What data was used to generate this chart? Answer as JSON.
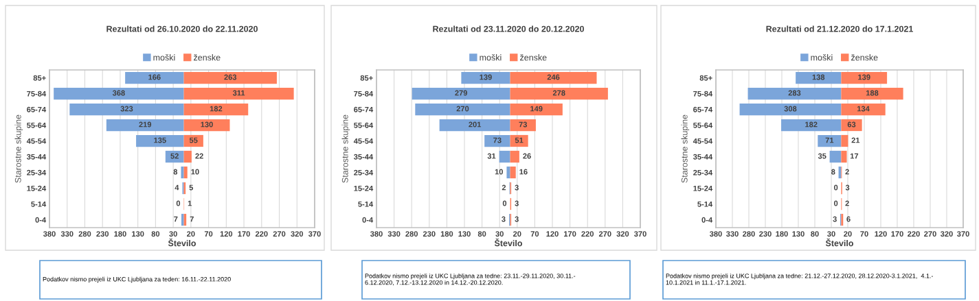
{
  "chart_data": [
    {
      "type": "bar",
      "orientation": "horizontal",
      "title": "Rezultati od 26.10.2020 do 22.11.2020",
      "xlabel": "Število",
      "ylabel": "Starostne skupine",
      "categories": [
        "85+",
        "75-84",
        "65-74",
        "55-64",
        "45-54",
        "35-44",
        "25-34",
        "15-24",
        "5-14",
        "0-4"
      ],
      "series": [
        {
          "name": "moški",
          "color": "#7ba5da",
          "values": [
            166,
            368,
            323,
            219,
            135,
            52,
            8,
            4,
            0,
            7
          ],
          "base": [
            -166,
            -368,
            -323,
            -219,
            -135,
            -52,
            -8,
            -4,
            null,
            -7
          ]
        },
        {
          "name": "ženske",
          "color": "#ff7f5c",
          "values": [
            263,
            311,
            182,
            130,
            55,
            22,
            10,
            5,
            1,
            7
          ]
        }
      ],
      "xlim": [
        -380,
        370
      ],
      "xticks": [
        {
          "value": -380,
          "label": "380"
        },
        {
          "value": -330,
          "label": "330"
        },
        {
          "value": -280,
          "label": "280"
        },
        {
          "value": -230,
          "label": "230"
        },
        {
          "value": -180,
          "label": "180"
        },
        {
          "value": -130,
          "label": "130"
        },
        {
          "value": -80,
          "label": "80"
        },
        {
          "value": -30,
          "label": "30"
        },
        20,
        70,
        120,
        170,
        220,
        270,
        320,
        370
      ],
      "grid": "x",
      "legend": "top",
      "data_labels": true,
      "annotations": [
        "Podatkov nismo prejeli iz UKC Ljubljana za teden: 16.11.-22.11.2020"
      ]
    },
    {
      "type": "bar",
      "orientation": "horizontal",
      "title": "Rezultati od 23.11.2020 do 20.12.2020",
      "xlabel": "Število",
      "ylabel": "Starostne skupine",
      "categories": [
        "85+",
        "75-84",
        "65-74",
        "55-64",
        "45-54",
        "35-44",
        "25-34",
        "15-24",
        "5-14",
        "0-4"
      ],
      "series": [
        {
          "name": "moški",
          "color": "#7ba5da",
          "values": [
            139,
            279,
            270,
            201,
            73,
            31,
            10,
            2,
            0,
            3
          ],
          "base": [
            -139,
            -279,
            -270,
            -201,
            -73,
            -31,
            -10,
            -2,
            null,
            -3
          ]
        },
        {
          "name": "ženske",
          "color": "#ff7f5c",
          "values": [
            246,
            278,
            149,
            73,
            51,
            26,
            16,
            3,
            3,
            3
          ]
        }
      ],
      "xlim": [
        -380,
        370
      ],
      "xticks": [
        {
          "value": -380,
          "label": "380"
        },
        {
          "value": -330,
          "label": "330"
        },
        {
          "value": -280,
          "label": "280"
        },
        {
          "value": -230,
          "label": "230"
        },
        {
          "value": -180,
          "label": "180"
        },
        {
          "value": -130,
          "label": "130"
        },
        {
          "value": -80,
          "label": "80"
        },
        {
          "value": -30,
          "label": "30"
        },
        20,
        70,
        120,
        170,
        220,
        270,
        320,
        370
      ],
      "grid": "x",
      "legend": "top",
      "data_labels": true,
      "annotations": [
        "Podatkov nismo prejeli iz UKC Ljubljana za tedne: 23.11.-29.11.2020, 30.11.-\n6.12.2020, 7.12.-13.12.2020 in 14.12.-20.12.2020."
      ]
    },
    {
      "type": "bar",
      "orientation": "horizontal",
      "title": "Rezultati od 21.12.2020 do 17.1.2021",
      "xlabel": "Število",
      "ylabel": "Starostne skupine",
      "categories": [
        "85+",
        "75-84",
        "65-74",
        "55-64",
        "45-54",
        "35-44",
        "25-34",
        "15-24",
        "5-14",
        "0-4"
      ],
      "series": [
        {
          "name": "moški",
          "color": "#7ba5da",
          "values": [
            138,
            283,
            308,
            182,
            71,
            35,
            8,
            0,
            0,
            3
          ],
          "base": [
            -138,
            -283,
            -308,
            -182,
            -71,
            -35,
            -8,
            null,
            null,
            -3
          ]
        },
        {
          "name": "ženske",
          "color": "#ff7f5c",
          "values": [
            139,
            188,
            134,
            63,
            21,
            17,
            2,
            3,
            2,
            6
          ]
        }
      ],
      "xlim": [
        -380,
        370
      ],
      "xticks": [
        {
          "value": -380,
          "label": "380"
        },
        {
          "value": -330,
          "label": "330"
        },
        {
          "value": -280,
          "label": "280"
        },
        {
          "value": -230,
          "label": "230"
        },
        {
          "value": -180,
          "label": "180"
        },
        {
          "value": -130,
          "label": "130"
        },
        {
          "value": -80,
          "label": "80"
        },
        {
          "value": -30,
          "label": "30"
        },
        20,
        70,
        120,
        170,
        220,
        270,
        320,
        370
      ],
      "grid": "x",
      "legend": "top",
      "data_labels": true,
      "annotations": [
        "Podatkov nismo prejeli iz UKC Ljubljana za tedne: 21.12.-27.12.2020, 28.12.2020-3.1.2021,  4.1.-\n10.1.2021 in 11.1.-17.1.2021."
      ]
    }
  ]
}
